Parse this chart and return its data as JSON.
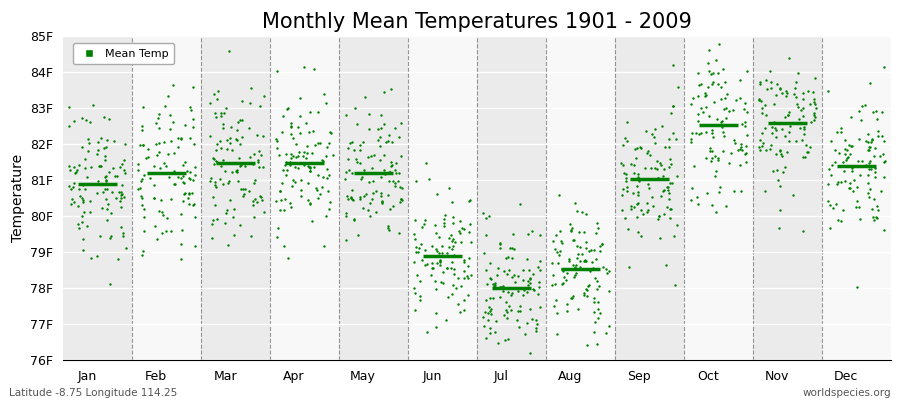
{
  "title": "Monthly Mean Temperatures 1901 - 2009",
  "ylabel": "Temperature",
  "subtitle_left": "Latitude -8.75 Longitude 114.25",
  "subtitle_right": "worldspecies.org",
  "months": [
    "Jan",
    "Feb",
    "Mar",
    "Apr",
    "May",
    "Jun",
    "Jul",
    "Aug",
    "Sep",
    "Oct",
    "Nov",
    "Dec"
  ],
  "month_means_F": [
    81.0,
    81.0,
    81.5,
    81.5,
    81.0,
    78.8,
    78.0,
    78.5,
    81.0,
    82.5,
    82.6,
    81.5
  ],
  "month_std_F": [
    1.1,
    1.1,
    1.0,
    1.0,
    1.0,
    0.9,
    0.9,
    0.9,
    1.0,
    1.0,
    1.0,
    1.0
  ],
  "ylim": [
    76,
    85
  ],
  "yticks": [
    76,
    77,
    78,
    79,
    80,
    81,
    82,
    83,
    84,
    85
  ],
  "ytick_labels": [
    "76F",
    "77F",
    "78F",
    "79F",
    "80F",
    "81F",
    "82F",
    "83F",
    "84F",
    "85F"
  ],
  "n_years": 109,
  "dot_color": "#008000",
  "mean_line_color": "#008000",
  "bg_odd": "#ebebeb",
  "bg_even": "#f8f8f8",
  "title_fontsize": 15,
  "axis_label_fontsize": 10,
  "tick_fontsize": 9,
  "legend_label": "Mean Temp",
  "seed": 42
}
